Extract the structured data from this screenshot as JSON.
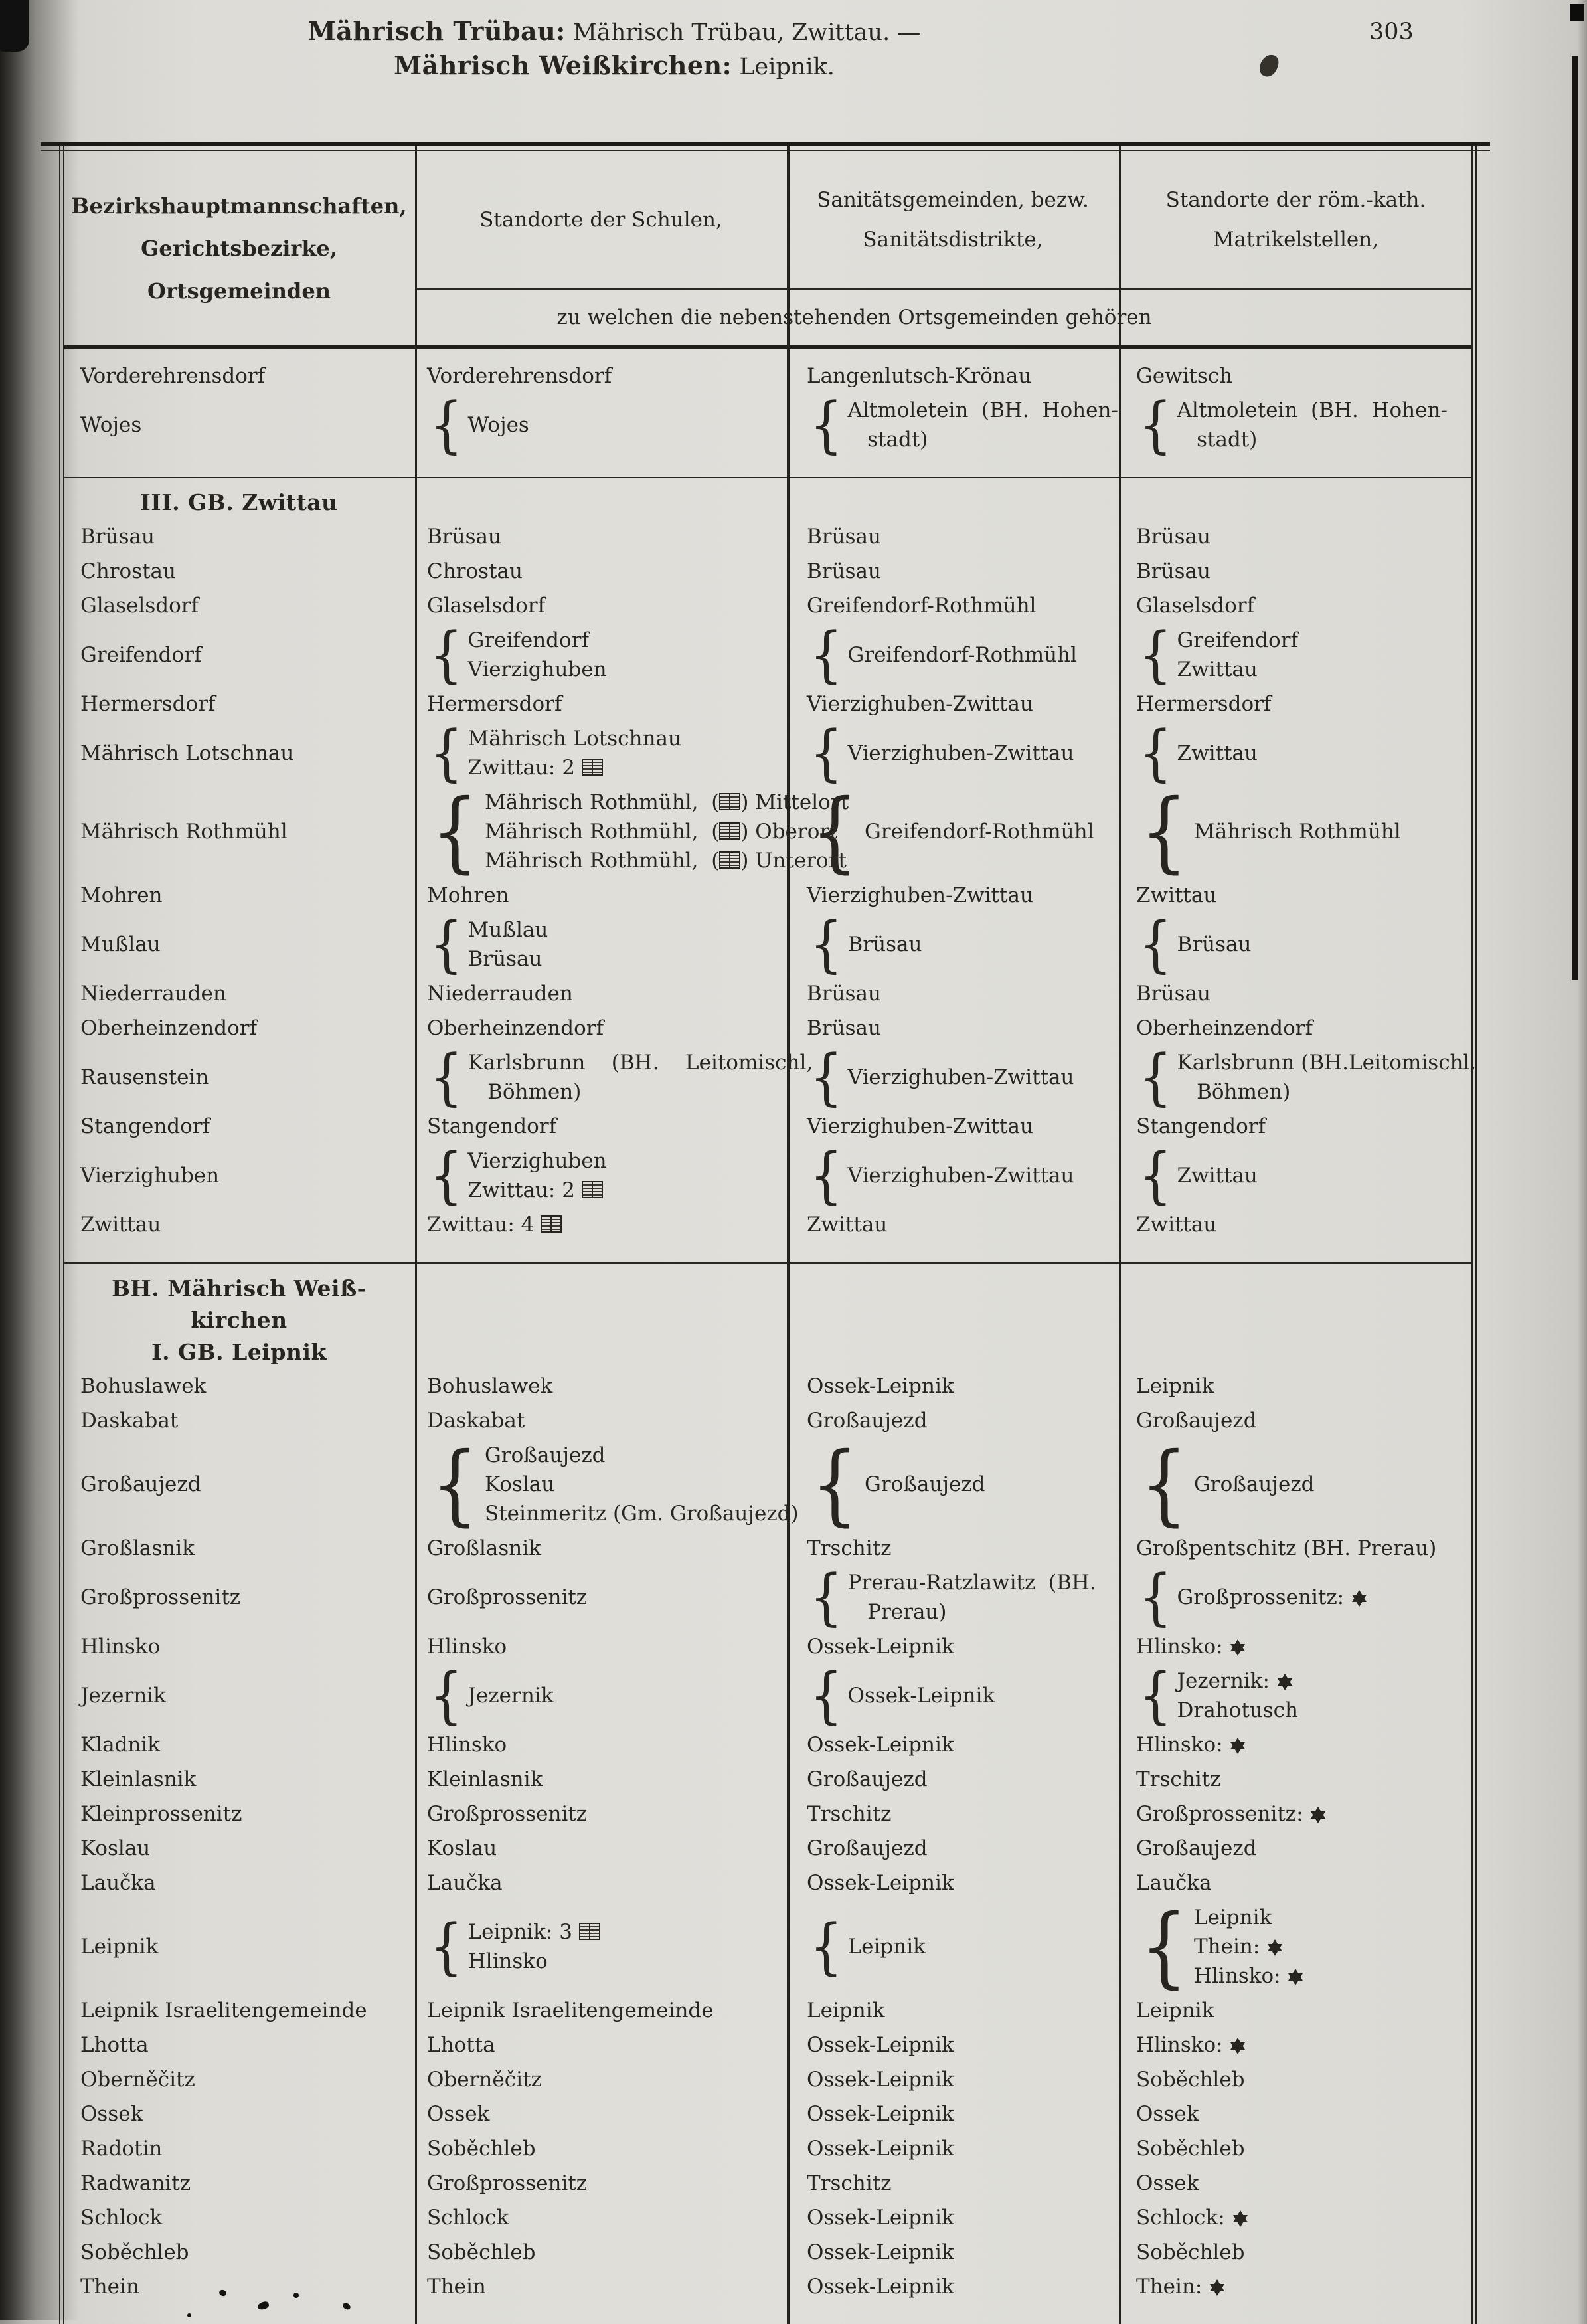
{
  "page": {
    "title_line1_bold": "Mährisch Trübau:",
    "title_line1_rest": "Mährisch Trübau, Zwittau. —",
    "title_line2_bold": "Mährisch Weißkirchen:",
    "title_line2_rest": "Leipnik.",
    "page_number": "303"
  },
  "icons": {
    "book_token": "[b]",
    "book_meaning": "open-book-icon (school symbol)",
    "star_token": "[s]",
    "star_meaning": "star-of-david-icon (israelite registry symbol)"
  },
  "table": {
    "headers": {
      "col1_lines": [
        "Bezirkshauptmannschaften,",
        "Gerichtsbezirke,",
        "Ortsgemeinden"
      ],
      "col2": "Standorte der Schulen,",
      "col3_lines": [
        "Sanitätsgemeinden, bezw.",
        "Sanitätsdistrikte,"
      ],
      "col4_lines": [
        "Standorte der röm.-kath.",
        "Matrikelstellen,"
      ],
      "span_note": "zu welchen die nebenstehenden Ortsgemeinden gehören"
    },
    "sections": [
      {
        "heading": [],
        "rows": [
          [
            "Vorderehrensdorf",
            "Vorderehrensdorf",
            "Langenlutsch-Krönau",
            "Gewitsch"
          ],
          [
            "Wojes",
            {
              "b": 1,
              "h": 2,
              "t": [
                "Wojes"
              ]
            },
            {
              "b": 1,
              "t": [
                "Altmoletein  (BH.  Hohen-",
                "   stadt)"
              ]
            },
            {
              "b": 1,
              "t": [
                "Altmoletein  (BH.  Hohen-",
                "   stadt)"
              ]
            }
          ]
        ]
      },
      {
        "heading": [
          {
            "t": "III. GB. Zwittau"
          }
        ],
        "rows": [
          [
            "Brüsau",
            "Brüsau",
            "Brüsau",
            "Brüsau"
          ],
          [
            "Chrostau",
            "Chrostau",
            "Brüsau",
            "Brüsau"
          ],
          [
            "Glaselsdorf",
            "Glaselsdorf",
            "Greifendorf-Rothmühl",
            "Glaselsdorf"
          ],
          [
            "Greifendorf",
            {
              "b": 1,
              "t": [
                "Greifendorf",
                "Vierzighuben"
              ]
            },
            {
              "b": 1,
              "h": 2,
              "t": [
                "Greifendorf-Rothmühl"
              ]
            },
            {
              "b": 1,
              "t": [
                "Greifendorf",
                "Zwittau"
              ]
            }
          ],
          [
            "Hermersdorf",
            "Hermersdorf",
            "Vierzighuben-Zwittau",
            "Hermersdorf"
          ],
          [
            "Mährisch Lotschnau",
            {
              "b": 1,
              "t": [
                "Mährisch Lotschnau",
                "Zwittau: 2 [b]"
              ]
            },
            {
              "b": 1,
              "h": 2,
              "t": [
                "Vierzighuben-Zwittau"
              ]
            },
            {
              "b": 1,
              "h": 2,
              "t": [
                "Zwittau"
              ]
            }
          ],
          [
            "Mährisch Rothmühl",
            {
              "b": 1,
              "t": [
                "Mährisch Rothmühl,  ([b]) Mittelort",
                "Mährisch Rothmühl,  ([b]) Oberort",
                "Mährisch Rothmühl,  ([b]) Unterort"
              ]
            },
            {
              "b": 1,
              "h": 3,
              "t": [
                "Greifendorf-Rothmühl"
              ]
            },
            {
              "b": 1,
              "h": 3,
              "t": [
                "Mährisch Rothmühl"
              ]
            }
          ],
          [
            "Mohren",
            "Mohren",
            "Vierzighuben-Zwittau",
            "Zwittau"
          ],
          [
            "Mußlau",
            {
              "b": 1,
              "t": [
                "Mußlau",
                "Brüsau"
              ]
            },
            {
              "b": 1,
              "h": 2,
              "t": [
                "Brüsau"
              ]
            },
            {
              "b": 1,
              "h": 2,
              "t": [
                "Brüsau"
              ]
            }
          ],
          [
            "Niederrauden",
            "Niederrauden",
            "Brüsau",
            "Brüsau"
          ],
          [
            "Oberheinzendorf",
            "Oberheinzendorf",
            "Brüsau",
            "Oberheinzendorf"
          ],
          [
            "Rausenstein",
            {
              "b": 1,
              "t": [
                "Karlsbrunn    (BH.    Leitomischl,",
                "   Böhmen)"
              ]
            },
            {
              "b": 1,
              "h": 2,
              "t": [
                "Vierzighuben-Zwittau"
              ]
            },
            {
              "b": 1,
              "t": [
                "Karlsbrunn (BH.Leitomischl,",
                "   Böhmen)"
              ]
            }
          ],
          [
            "Stangendorf",
            "Stangendorf",
            "Vierzighuben-Zwittau",
            "Stangendorf"
          ],
          [
            "Vierzighuben",
            {
              "b": 1,
              "t": [
                "Vierzighuben",
                "Zwittau: 2 [b]"
              ]
            },
            {
              "b": 1,
              "h": 2,
              "t": [
                "Vierzighuben-Zwittau"
              ]
            },
            {
              "b": 1,
              "h": 2,
              "t": [
                "Zwittau"
              ]
            }
          ],
          [
            "Zwittau",
            "Zwittau: 4 [b]",
            "Zwittau",
            "Zwittau"
          ]
        ]
      },
      {
        "heading": [
          {
            "t": "BH. Mährisch Weiß-"
          },
          {
            "t": "kirchen"
          },
          {
            "t": "I. GB. Leipnik",
            "gap": true
          }
        ],
        "rows": [
          [
            "Bohuslawek",
            "Bohuslawek",
            "Ossek-Leipnik",
            "Leipnik"
          ],
          [
            "Daskabat",
            "Daskabat",
            "Großaujezd",
            "Großaujezd"
          ],
          [
            "Großaujezd",
            {
              "b": 1,
              "t": [
                "Großaujezd",
                "Koslau",
                "Steinmeritz (Gm. Großaujezd)"
              ]
            },
            {
              "b": 1,
              "h": 3,
              "t": [
                "Großaujezd"
              ]
            },
            {
              "b": 1,
              "h": 3,
              "t": [
                "Großaujezd"
              ]
            }
          ],
          [
            "Großlasnik",
            "Großlasnik",
            "Trschitz",
            "Großpentschitz (BH. Prerau)"
          ],
          [
            "Großprossenitz",
            "Großprossenitz",
            {
              "b": 1,
              "t": [
                "Prerau-Ratzlawitz  (BH.",
                "   Prerau)"
              ]
            },
            {
              "b": 1,
              "h": 2,
              "t": [
                "Großprossenitz: [s]"
              ]
            }
          ],
          [
            "Hlinsko",
            "Hlinsko",
            "Ossek-Leipnik",
            "Hlinsko: [s]"
          ],
          [
            "Jezernik",
            {
              "b": 1,
              "h": 2,
              "t": [
                "Jezernik"
              ]
            },
            {
              "b": 1,
              "h": 2,
              "t": [
                "Ossek-Leipnik"
              ]
            },
            {
              "b": 1,
              "t": [
                "Jezernik: [s]",
                "Drahotusch"
              ]
            }
          ],
          [
            "Kladnik",
            "Hlinsko",
            "Ossek-Leipnik",
            "Hlinsko: [s]"
          ],
          [
            "Kleinlasnik",
            "Kleinlasnik",
            "Großaujezd",
            "Trschitz"
          ],
          [
            "Kleinprossenitz",
            "Großprossenitz",
            "Trschitz",
            "Großprossenitz: [s]"
          ],
          [
            "Koslau",
            "Koslau",
            "Großaujezd",
            "Großaujezd"
          ],
          [
            "Laučka",
            "Laučka",
            "Ossek-Leipnik",
            "Laučka"
          ],
          [
            "Leipnik",
            {
              "b": 1,
              "t": [
                "Leipnik: 3 [b]",
                "Hlinsko"
              ]
            },
            {
              "b": 1,
              "h": 2,
              "t": [
                "Leipnik"
              ]
            },
            {
              "b": 1,
              "t": [
                "Leipnik",
                "Thein: [s]",
                "Hlinsko: [s]"
              ]
            }
          ],
          [
            "Leipnik Israelitengemeinde",
            "Leipnik Israelitengemeinde",
            "Leipnik",
            "Leipnik"
          ],
          [
            "Lhotta",
            "Lhotta",
            "Ossek-Leipnik",
            "Hlinsko: [s]"
          ],
          [
            "Oberněčitz",
            "Oberněčitz",
            "Ossek-Leipnik",
            "Soběchleb"
          ],
          [
            "Ossek",
            "Ossek",
            "Ossek-Leipnik",
            "Ossek"
          ],
          [
            "Radotin",
            "Soběchleb",
            "Ossek-Leipnik",
            "Soběchleb"
          ],
          [
            "Radwanitz",
            "Großprossenitz",
            "Trschitz",
            "Ossek"
          ],
          [
            "Schlock",
            "Schlock",
            "Ossek-Leipnik",
            "Schlock: [s]"
          ],
          [
            "Soběchleb",
            "Soběchleb",
            "Ossek-Leipnik",
            "Soběchleb"
          ],
          [
            "Thein",
            "Thein",
            "Ossek-Leipnik",
            "Thein: [s]"
          ]
        ]
      }
    ]
  }
}
